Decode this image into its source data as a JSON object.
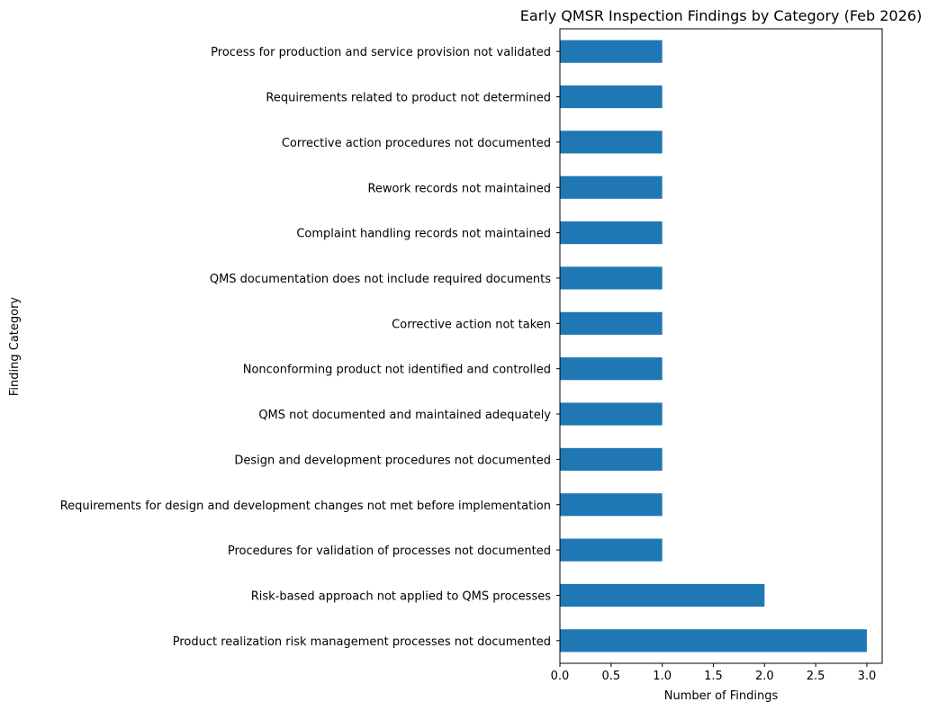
{
  "chart_data": {
    "type": "bar",
    "orientation": "horizontal",
    "title": "Early QMSR Inspection Findings by Category (Feb 2026)",
    "xlabel": "Number of Findings",
    "ylabel": "Finding Category",
    "xlim": [
      0,
      3.15
    ],
    "xticks": [
      "0.0",
      "0.5",
      "1.0",
      "1.5",
      "2.0",
      "2.5",
      "3.0"
    ],
    "xtick_values": [
      0,
      0.5,
      1.0,
      1.5,
      2.0,
      2.5,
      3.0
    ],
    "grid": false,
    "legend": null,
    "bar_color": "#1f77b4",
    "categories": [
      "Process for production and service provision not validated",
      "Requirements related to product not determined",
      "Corrective action procedures not documented",
      "Rework records not maintained",
      "Complaint handling records not maintained",
      "QMS documentation does not include required documents",
      "Corrective action not taken",
      "Nonconforming product not identified and controlled",
      "QMS not documented and maintained adequately",
      "Design and development procedures not documented",
      "Requirements for design and development changes not met before implementation",
      "Procedures for validation of processes  not documented",
      "Risk-based approach not applied to QMS processes",
      "Product realization risk management processes not documented"
    ],
    "values": [
      1,
      1,
      1,
      1,
      1,
      1,
      1,
      1,
      1,
      1,
      1,
      1,
      2,
      3
    ]
  }
}
